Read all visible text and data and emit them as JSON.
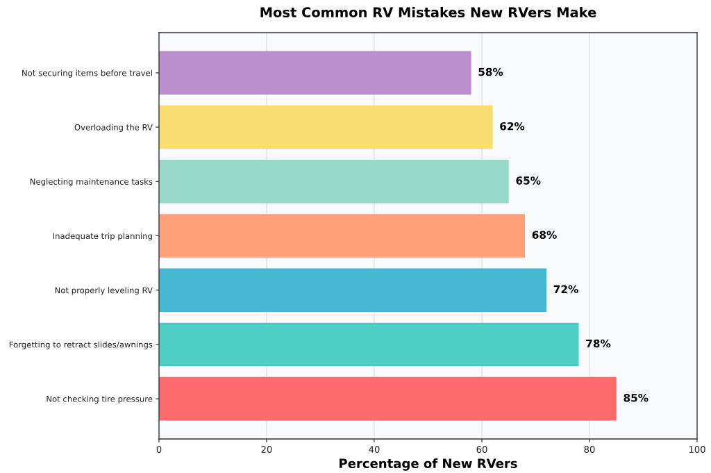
{
  "chart_data": {
    "type": "bar",
    "orientation": "horizontal",
    "title": "Most Common RV Mistakes New RVers Make",
    "xlabel": "Percentage of New RVers",
    "categories": [
      "Not securing items before travel",
      "Overloading the RV",
      "Neglecting maintenance tasks",
      "Inadequate trip planning",
      "Not properly leveling RV",
      "Forgetting to retract slides/awnings",
      "Not checking tire pressure"
    ],
    "values": [
      58,
      62,
      65,
      68,
      72,
      78,
      85
    ],
    "colors": [
      "#bb8fce",
      "#f7dc6f",
      "#98d8c8",
      "#ffa07a",
      "#45b7d1",
      "#4ecdc4",
      "#ff6b6b"
    ],
    "value_labels": [
      "58%",
      "62%",
      "65%",
      "68%",
      "72%",
      "78%",
      "85%"
    ],
    "xlim": [
      0,
      100
    ],
    "xticks": [
      0,
      20,
      40,
      60,
      80,
      100
    ],
    "grid": "x",
    "legend": false
  }
}
